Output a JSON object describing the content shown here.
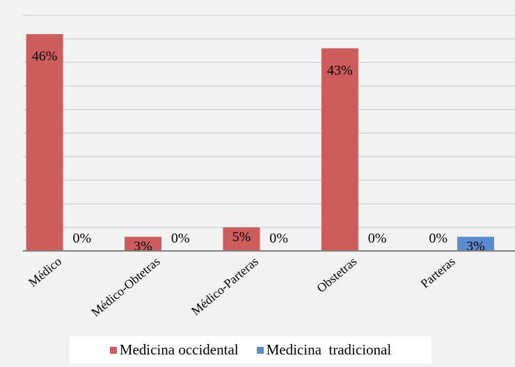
{
  "chart_data": {
    "type": "bar",
    "categories": [
      "Médico",
      "Médico-Obtetras",
      "Médico-Parteras",
      "Obstetras",
      "Parteras"
    ],
    "series": [
      {
        "name": "Medicina occidental",
        "color": "#cd5c5c",
        "values": [
          46,
          3,
          5,
          43,
          0
        ],
        "labels": [
          "46%",
          "3%",
          "5%",
          "43%",
          "0%"
        ]
      },
      {
        "name": "Medicina  tradicional",
        "color": "#5b8ccf",
        "values": [
          0,
          0,
          0,
          0,
          3
        ],
        "labels": [
          "0%",
          "0%",
          "0%",
          "0%",
          "3%"
        ]
      }
    ],
    "ylim": [
      0,
      50
    ],
    "grid": true,
    "legend_position": "bottom",
    "title": "",
    "xlabel": "",
    "ylabel": ""
  }
}
